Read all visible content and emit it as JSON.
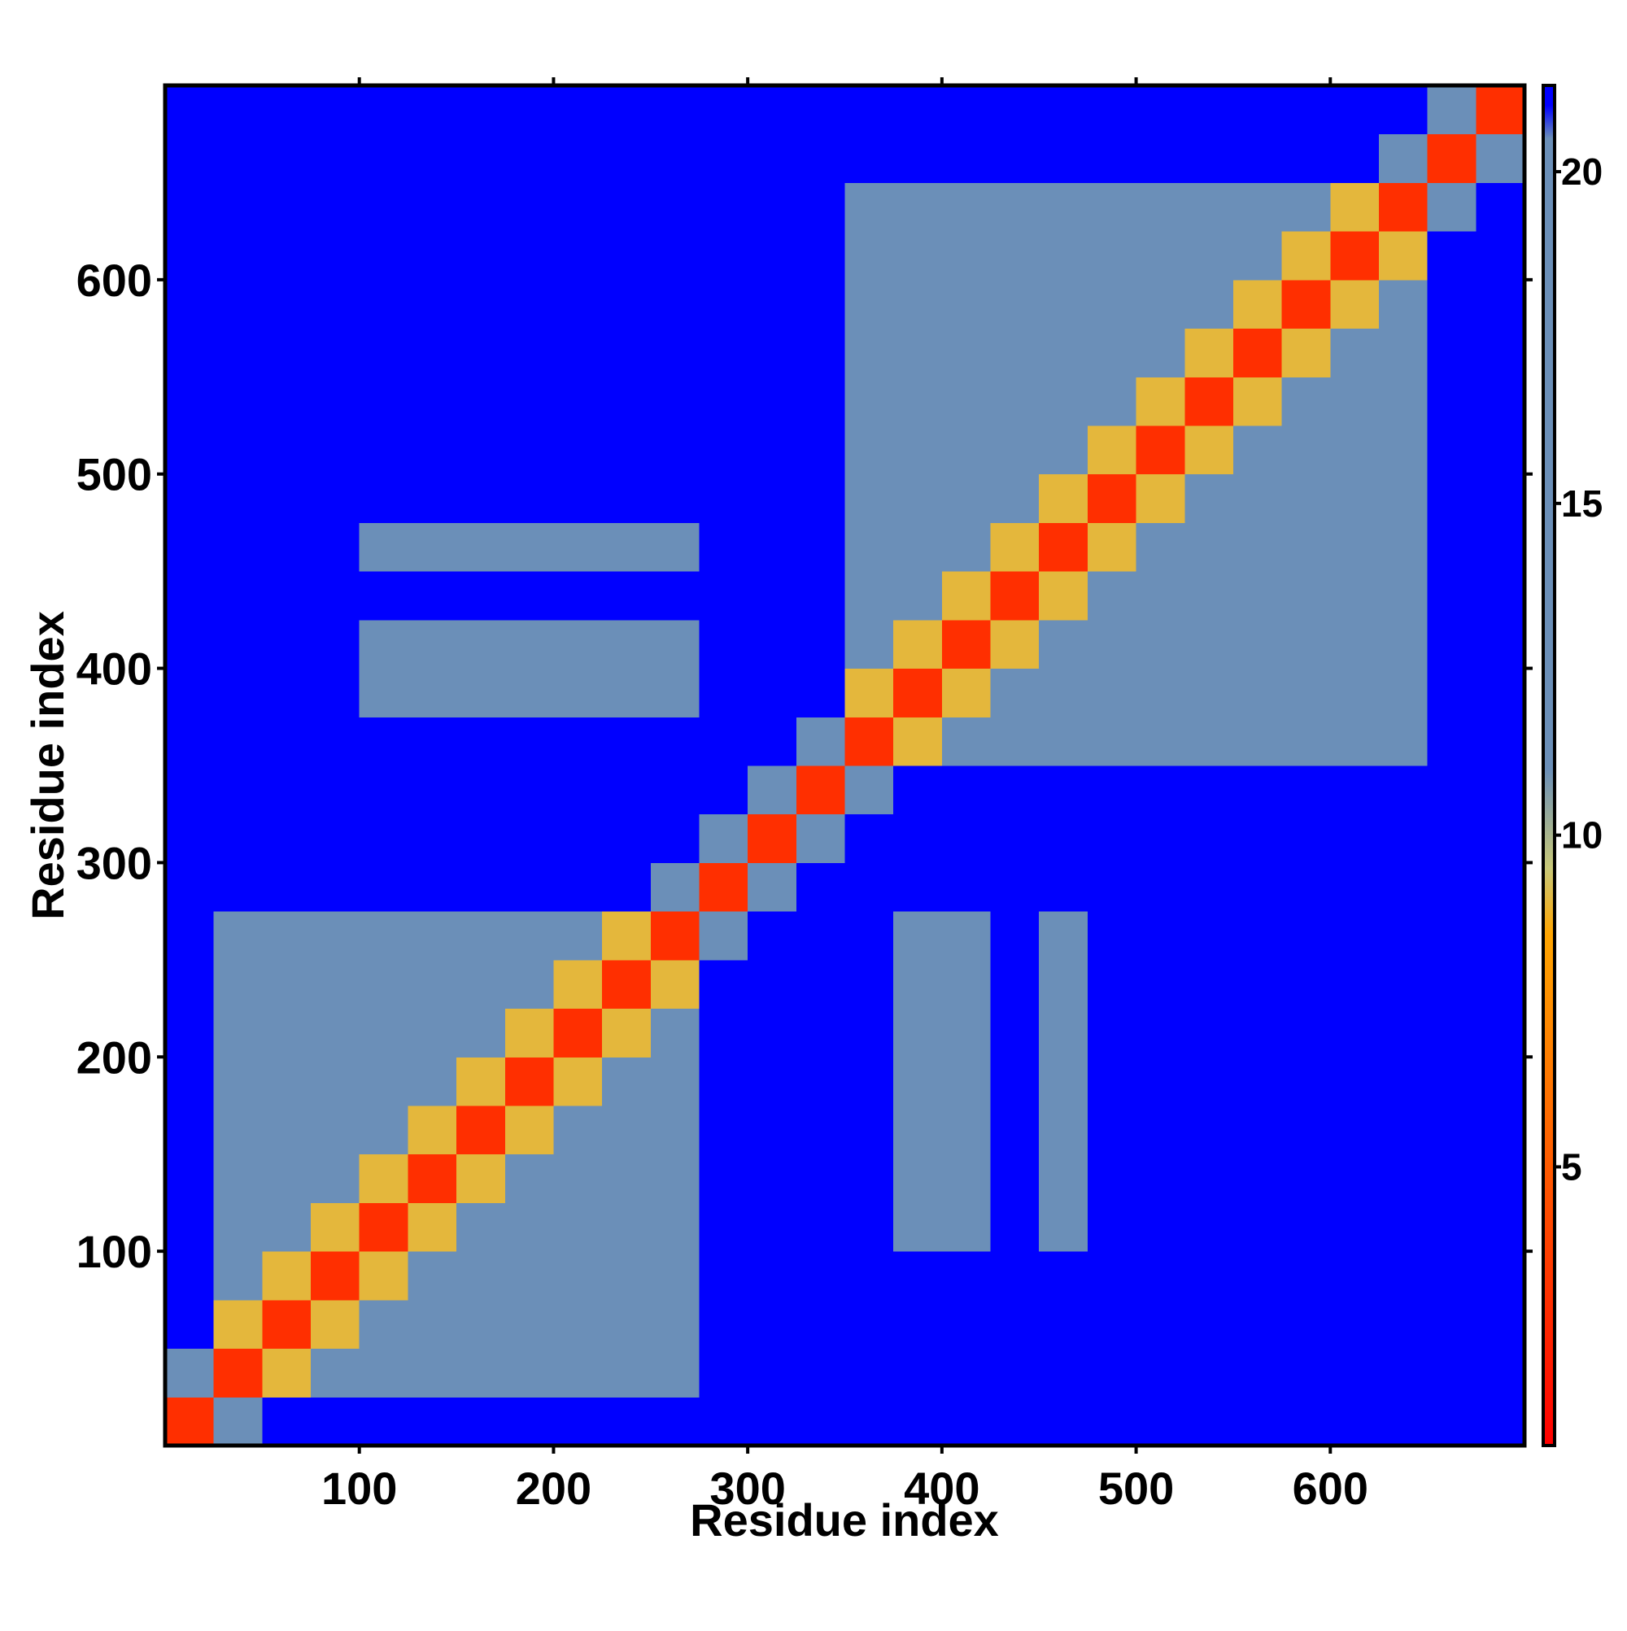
{
  "chart_data": {
    "type": "heatmap",
    "xlabel": "Residue index",
    "ylabel": "Residue index",
    "x": [
      12.5,
      37.5,
      62.5,
      87.5,
      112.5,
      137.5,
      162.5,
      187.5,
      212.5,
      237.5,
      262.5,
      287.5,
      312.5,
      337.5,
      362.5,
      387.5,
      412.5,
      437.5,
      462.5,
      487.5,
      512.5,
      537.5,
      562.5,
      587.5,
      612.5,
      637.5,
      662.5,
      687.5
    ],
    "y": [
      12.5,
      37.5,
      62.5,
      87.5,
      112.5,
      137.5,
      162.5,
      187.5,
      212.5,
      237.5,
      262.5,
      287.5,
      312.5,
      337.5,
      362.5,
      387.5,
      412.5,
      437.5,
      462.5,
      487.5,
      512.5,
      537.5,
      562.5,
      587.5,
      612.5,
      637.5,
      662.5,
      687.5
    ],
    "z": [
      [
        3,
        12,
        21,
        21,
        21,
        21,
        21,
        21,
        21,
        21,
        21,
        21,
        21,
        21,
        21,
        21,
        21,
        21,
        21,
        21,
        21,
        21,
        21,
        21,
        21,
        21,
        21,
        21
      ],
      [
        12,
        3,
        9,
        12,
        15,
        15,
        15,
        15,
        15,
        15,
        15,
        21,
        21,
        21,
        21,
        21,
        21,
        21,
        21,
        21,
        21,
        21,
        21,
        21,
        21,
        21,
        21,
        21
      ],
      [
        21,
        9,
        3,
        9,
        12,
        15,
        15,
        15,
        15,
        15,
        15,
        21,
        21,
        21,
        21,
        21,
        21,
        21,
        21,
        21,
        21,
        21,
        21,
        21,
        21,
        21,
        21,
        21
      ],
      [
        21,
        12,
        9,
        3,
        9,
        12,
        15,
        15,
        15,
        15,
        15,
        21,
        21,
        21,
        21,
        21,
        21,
        21,
        21,
        21,
        21,
        21,
        21,
        21,
        21,
        21,
        21,
        21
      ],
      [
        21,
        15,
        12,
        9,
        3,
        9,
        12,
        15,
        15,
        15,
        15,
        21,
        21,
        21,
        21,
        18,
        18,
        21,
        18,
        21,
        21,
        21,
        21,
        21,
        21,
        21,
        21,
        21
      ],
      [
        21,
        15,
        15,
        12,
        9,
        3,
        9,
        12,
        15,
        15,
        15,
        21,
        21,
        21,
        21,
        18,
        18,
        21,
        18,
        21,
        21,
        21,
        21,
        21,
        21,
        21,
        21,
        21
      ],
      [
        21,
        15,
        15,
        15,
        12,
        9,
        3,
        9,
        12,
        15,
        15,
        21,
        21,
        21,
        21,
        18,
        18,
        21,
        18,
        21,
        21,
        21,
        21,
        21,
        21,
        21,
        21,
        21
      ],
      [
        21,
        15,
        15,
        15,
        15,
        12,
        9,
        3,
        9,
        12,
        15,
        21,
        21,
        21,
        21,
        18,
        18,
        21,
        18,
        21,
        21,
        21,
        21,
        21,
        21,
        21,
        21,
        21
      ],
      [
        21,
        15,
        15,
        15,
        15,
        15,
        12,
        9,
        3,
        9,
        12,
        21,
        21,
        21,
        21,
        18,
        18,
        21,
        18,
        21,
        21,
        21,
        21,
        21,
        21,
        21,
        21,
        21
      ],
      [
        21,
        15,
        15,
        15,
        15,
        15,
        15,
        12,
        9,
        3,
        9,
        21,
        21,
        21,
        21,
        18,
        18,
        21,
        18,
        21,
        21,
        21,
        21,
        21,
        21,
        21,
        21,
        21
      ],
      [
        21,
        15,
        15,
        15,
        15,
        15,
        15,
        15,
        12,
        9,
        3,
        12,
        21,
        21,
        21,
        18,
        18,
        21,
        18,
        21,
        21,
        21,
        21,
        21,
        21,
        21,
        21,
        21
      ],
      [
        21,
        21,
        21,
        21,
        21,
        21,
        21,
        21,
        21,
        21,
        12,
        3,
        12,
        21,
        21,
        21,
        21,
        21,
        21,
        21,
        21,
        21,
        21,
        21,
        21,
        21,
        21,
        21
      ],
      [
        21,
        21,
        21,
        21,
        21,
        21,
        21,
        21,
        21,
        21,
        21,
        12,
        3,
        12,
        21,
        21,
        21,
        21,
        21,
        21,
        21,
        21,
        21,
        21,
        21,
        21,
        21,
        21
      ],
      [
        21,
        21,
        21,
        21,
        21,
        21,
        21,
        21,
        21,
        21,
        21,
        21,
        12,
        3,
        12,
        21,
        21,
        21,
        21,
        21,
        21,
        21,
        21,
        21,
        21,
        21,
        21,
        21
      ],
      [
        21,
        21,
        21,
        21,
        21,
        21,
        21,
        21,
        21,
        21,
        21,
        21,
        21,
        12,
        3,
        9,
        12,
        15,
        15,
        15,
        15,
        15,
        15,
        15,
        15,
        15,
        21,
        21
      ],
      [
        21,
        21,
        21,
        21,
        18,
        18,
        18,
        18,
        18,
        18,
        18,
        21,
        21,
        21,
        9,
        3,
        9,
        12,
        15,
        15,
        15,
        15,
        15,
        15,
        15,
        15,
        21,
        21
      ],
      [
        21,
        21,
        21,
        21,
        18,
        18,
        18,
        18,
        18,
        18,
        18,
        21,
        21,
        21,
        12,
        9,
        3,
        9,
        12,
        15,
        15,
        15,
        15,
        15,
        15,
        15,
        21,
        21
      ],
      [
        21,
        21,
        21,
        21,
        21,
        21,
        21,
        21,
        21,
        21,
        21,
        21,
        21,
        21,
        15,
        12,
        9,
        3,
        9,
        12,
        15,
        15,
        15,
        15,
        15,
        15,
        21,
        21
      ],
      [
        21,
        21,
        21,
        21,
        18,
        18,
        18,
        18,
        18,
        18,
        18,
        21,
        21,
        21,
        15,
        15,
        12,
        9,
        3,
        9,
        12,
        15,
        15,
        15,
        15,
        15,
        21,
        21
      ],
      [
        21,
        21,
        21,
        21,
        21,
        21,
        21,
        21,
        21,
        21,
        21,
        21,
        21,
        21,
        15,
        15,
        15,
        12,
        9,
        3,
        9,
        12,
        15,
        15,
        15,
        15,
        21,
        21
      ],
      [
        21,
        21,
        21,
        21,
        21,
        21,
        21,
        21,
        21,
        21,
        21,
        21,
        21,
        21,
        15,
        15,
        15,
        15,
        12,
        9,
        3,
        9,
        12,
        15,
        15,
        15,
        21,
        21
      ],
      [
        21,
        21,
        21,
        21,
        21,
        21,
        21,
        21,
        21,
        21,
        21,
        21,
        21,
        21,
        15,
        15,
        15,
        15,
        15,
        12,
        9,
        3,
        9,
        12,
        15,
        15,
        21,
        21
      ],
      [
        21,
        21,
        21,
        21,
        21,
        21,
        21,
        21,
        21,
        21,
        21,
        21,
        21,
        21,
        15,
        15,
        15,
        15,
        15,
        15,
        12,
        9,
        3,
        9,
        12,
        15,
        21,
        21
      ],
      [
        21,
        21,
        21,
        21,
        21,
        21,
        21,
        21,
        21,
        21,
        21,
        21,
        21,
        21,
        15,
        15,
        15,
        15,
        15,
        15,
        15,
        12,
        9,
        3,
        9,
        12,
        21,
        21
      ],
      [
        21,
        21,
        21,
        21,
        21,
        21,
        21,
        21,
        21,
        21,
        21,
        21,
        21,
        21,
        15,
        15,
        15,
        15,
        15,
        15,
        15,
        15,
        12,
        9,
        3,
        9,
        21,
        21
      ],
      [
        21,
        21,
        21,
        21,
        21,
        21,
        21,
        21,
        21,
        21,
        21,
        21,
        21,
        21,
        15,
        15,
        15,
        15,
        15,
        15,
        15,
        15,
        15,
        12,
        9,
        3,
        12,
        21
      ],
      [
        21,
        21,
        21,
        21,
        21,
        21,
        21,
        21,
        21,
        21,
        21,
        21,
        21,
        21,
        21,
        21,
        21,
        21,
        21,
        21,
        21,
        21,
        21,
        21,
        21,
        12,
        3,
        12
      ],
      [
        21,
        21,
        21,
        21,
        21,
        21,
        21,
        21,
        21,
        21,
        21,
        21,
        21,
        21,
        21,
        21,
        21,
        21,
        21,
        21,
        21,
        21,
        21,
        21,
        21,
        21,
        12,
        3
      ]
    ],
    "xlim": [
      0,
      700
    ],
    "ylim": [
      0,
      700
    ],
    "xticks": [
      100,
      200,
      300,
      400,
      500,
      600
    ],
    "yticks": [
      100,
      200,
      300,
      400,
      500,
      600
    ],
    "zlim": [
      0.8,
      21.3
    ],
    "zticks": [
      5,
      10,
      15,
      20
    ],
    "colorscale": [
      [
        0.8,
        "#ff0000"
      ],
      [
        8.5,
        "#ffa500"
      ],
      [
        9.5,
        "#c8c878"
      ],
      [
        11,
        "#6b8fb8"
      ],
      [
        20.5,
        "#6b8fb8"
      ],
      [
        21,
        "#0000ff"
      ]
    ]
  }
}
